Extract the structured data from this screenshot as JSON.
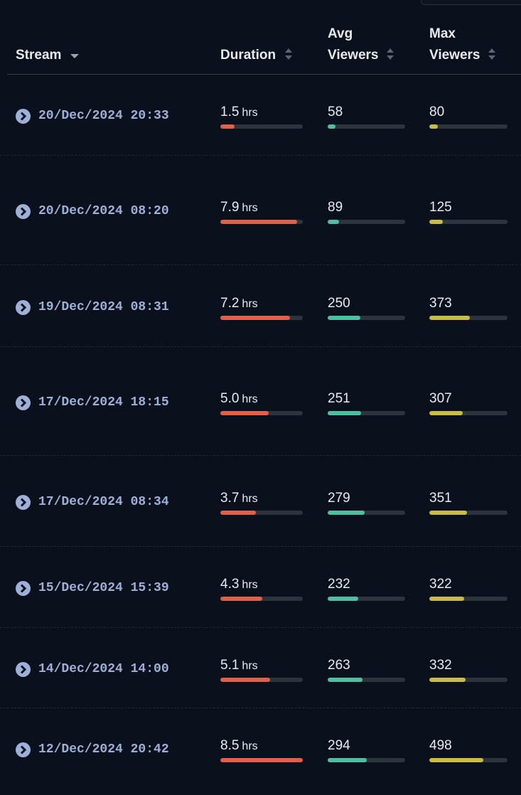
{
  "table": {
    "headers": [
      "Stream",
      "Duration",
      "Avg Viewers",
      "Max Viewers"
    ],
    "unit": "hrs",
    "rows": [
      {
        "stream": "20/Dec/2024 20:33",
        "duration": {
          "value": 1.5,
          "label": "1.5"
        },
        "avg": 58,
        "max": 80
      },
      {
        "stream": "20/Dec/2024 08:20",
        "duration": {
          "value": 7.9,
          "label": "7.9"
        },
        "avg": 89,
        "max": 125
      },
      {
        "stream": "19/Dec/2024 08:31",
        "duration": {
          "value": 7.2,
          "label": "7.2"
        },
        "avg": 250,
        "max": 373
      },
      {
        "stream": "17/Dec/2024 18:15",
        "duration": {
          "value": 5.0,
          "label": "5.0"
        },
        "avg": 251,
        "max": 307
      },
      {
        "stream": "17/Dec/2024 08:34",
        "duration": {
          "value": 3.7,
          "label": "3.7"
        },
        "avg": 279,
        "max": 351
      },
      {
        "stream": "15/Dec/2024 15:39",
        "duration": {
          "value": 4.3,
          "label": "4.3"
        },
        "avg": 232,
        "max": 322
      },
      {
        "stream": "14/Dec/2024 14:00",
        "duration": {
          "value": 5.1,
          "label": "5.1"
        },
        "avg": 263,
        "max": 332
      },
      {
        "stream": "12/Dec/2024 20:42",
        "duration": {
          "value": 8.5,
          "label": "8.5"
        },
        "avg": 294,
        "max": 498
      }
    ]
  }
}
